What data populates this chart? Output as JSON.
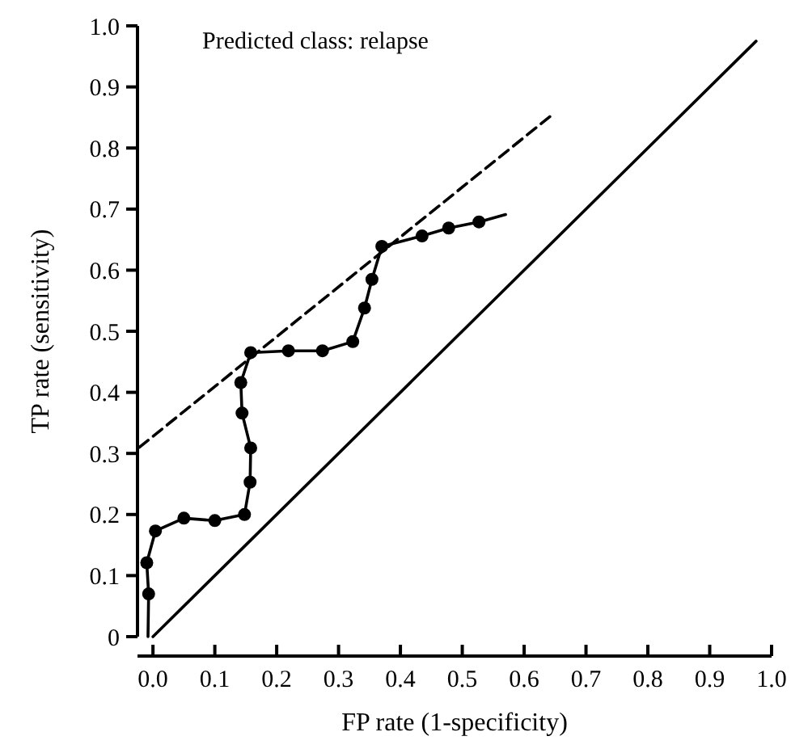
{
  "chart_data": {
    "type": "line",
    "xlabel": "FP rate (1-specificity)",
    "ylabel": "TP rate (sensitivity)",
    "annotations": [
      "Predicted class: relapse"
    ],
    "xlim": [
      -0.025,
      1.0
    ],
    "ylim": [
      0,
      1.0
    ],
    "xticks": [
      {
        "value": 0,
        "label": "0.0"
      },
      {
        "value": 0.1,
        "label": "0.1"
      },
      {
        "value": 0.2,
        "label": "0.2"
      },
      {
        "value": 0.3,
        "label": "0.3"
      },
      {
        "value": 0.4,
        "label": "0.4"
      },
      {
        "value": 0.5,
        "label": "0.5"
      },
      {
        "value": 0.6,
        "label": "0.6"
      },
      {
        "value": 0.7,
        "label": "0.7"
      },
      {
        "value": 0.8,
        "label": "0.8"
      },
      {
        "value": 0.9,
        "label": "0.9"
      },
      {
        "value": 1,
        "label": "1.0"
      }
    ],
    "yticks": [
      0,
      0.1,
      0.2,
      0.3,
      0.4,
      0.5,
      0.6,
      0.7,
      0.8,
      0.9,
      {
        "value": 1,
        "label": "1.0"
      }
    ],
    "grid": false,
    "series": [
      {
        "color": "#000000",
        "marker": "none",
        "line_style": "solid",
        "x": [
          -0.008,
          -0.007,
          -0.01,
          0.004,
          0.05,
          0.1,
          0.148,
          0.157,
          0.158,
          0.144,
          0.142,
          0.158,
          0.219,
          0.274,
          0.323,
          0.342,
          0.354,
          0.37,
          0.435,
          0.478,
          0.527,
          0.57
        ],
        "values": [
          0,
          0.07,
          0.121,
          0.173,
          0.194,
          0.19,
          0.2,
          0.253,
          0.309,
          0.366,
          0.416,
          0.465,
          0.468,
          0.468,
          0.483,
          0.538,
          0.585,
          0.639,
          0.656,
          0.669,
          0.679,
          0.691
        ]
      },
      {
        "type": "scatter",
        "color": "#000000",
        "marker": "circle",
        "x": [
          -0.007,
          -0.01,
          0.004,
          0.05,
          0.1,
          0.148,
          0.157,
          0.158,
          0.144,
          0.142,
          0.158,
          0.219,
          0.274,
          0.323,
          0.342,
          0.354,
          0.37,
          0.435,
          0.478,
          0.527
        ],
        "values": [
          0.07,
          0.121,
          0.173,
          0.194,
          0.19,
          0.2,
          0.253,
          0.309,
          0.366,
          0.416,
          0.465,
          0.468,
          0.468,
          0.483,
          0.538,
          0.585,
          0.639,
          0.656,
          0.669,
          0.679
        ]
      },
      {
        "color": "#000000",
        "marker": "none",
        "line_style": "dashed",
        "x": [
          -0.022,
          0.646
        ],
        "values": [
          0.31,
          0.855
        ]
      },
      {
        "color": "#000000",
        "marker": "none",
        "line_style": "solid",
        "x": [
          0,
          0.975
        ],
        "values": [
          0,
          0.975
        ]
      }
    ]
  }
}
